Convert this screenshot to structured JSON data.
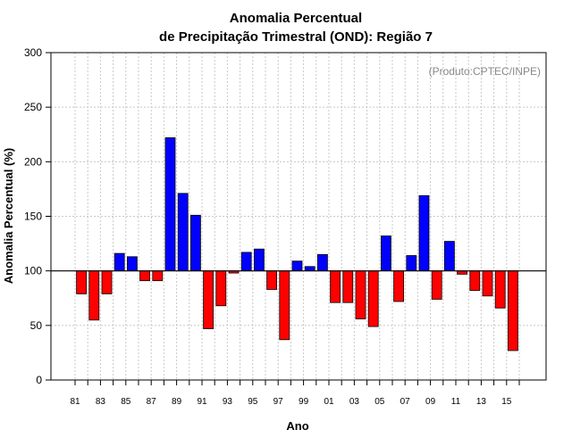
{
  "chart_data": {
    "type": "bar",
    "title_line1": "Anomalia Percentual",
    "title_line2": "de Precipitação Trimestral (OND): Região 7",
    "xlabel": "Ano",
    "ylabel": "Anomalia Percentual (%)",
    "credit": "(Produto:CPTEC/INPE)",
    "ylim": [
      0,
      300
    ],
    "yticks": [
      "0",
      "50",
      "100",
      "150",
      "200",
      "250",
      "300"
    ],
    "baseline": 100,
    "grid": true,
    "years": [
      1981,
      1982,
      1983,
      1984,
      1985,
      1986,
      1987,
      1988,
      1989,
      1990,
      1991,
      1992,
      1993,
      1994,
      1995,
      1996,
      1997,
      1998,
      1999,
      2000,
      2001,
      2002,
      2003,
      2004,
      2005,
      2006,
      2007,
      2008,
      2009,
      2010,
      2011,
      2012,
      2013,
      2014,
      2015
    ],
    "xtick_labels": [
      "81",
      "83",
      "85",
      "87",
      "89",
      "91",
      "93",
      "95",
      "97",
      "99",
      "01",
      "03",
      "05",
      "07",
      "09",
      "11",
      "13",
      "15"
    ],
    "values": [
      79,
      55,
      79,
      116,
      113,
      91,
      91,
      222,
      171,
      151,
      47,
      68,
      98,
      117,
      120,
      83,
      37,
      109,
      104,
      115,
      71,
      71,
      56,
      49,
      132,
      72,
      114,
      169,
      74,
      127,
      97,
      82,
      77,
      66,
      27
    ],
    "colors": {
      "above": "#0000ff",
      "below": "#ff0000",
      "line": "#000000",
      "grid": "#c8c8c8"
    }
  }
}
